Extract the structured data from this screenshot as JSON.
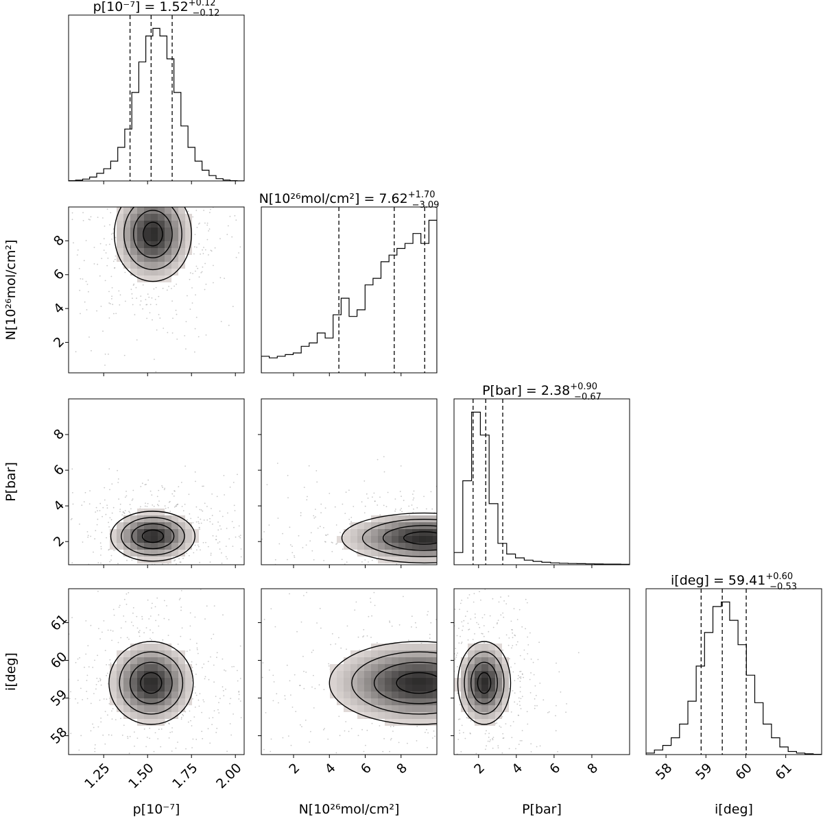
{
  "chart_data": {
    "type": "corner",
    "parameters": [
      {
        "key": "p",
        "symbol": "p",
        "unit": "[10⁻⁷]",
        "label_text": "p[10⁻⁷]",
        "range": [
          1.05,
          2.05
        ],
        "ticks": [
          1.25,
          1.5,
          1.75,
          2.0
        ],
        "tick_labels": [
          "1.25",
          "1.50",
          "1.75",
          "2.00"
        ],
        "title": {
          "prefix": "p[10⁻⁷] = 1.52",
          "plus": "+0.12",
          "minus": "−0.12"
        },
        "quantiles": [
          1.4,
          1.52,
          1.64
        ],
        "hist": [
          0.2,
          0.5,
          1.2,
          2.5,
          5,
          8,
          13,
          22,
          34,
          58,
          78,
          95,
          100,
          95,
          80,
          58,
          36,
          22,
          13,
          7,
          3.5,
          1.5,
          0.6,
          0.2,
          0.1
        ]
      },
      {
        "key": "N",
        "symbol": "N",
        "unit": "[10²⁶mol/cm²]",
        "label_text": "N[10²⁶mol/cm²]",
        "range": [
          0.2,
          10
        ],
        "ticks": [
          2,
          4,
          6,
          8
        ],
        "tick_labels": [
          "2",
          "4",
          "6",
          "8"
        ],
        "title": {
          "prefix": "N[10²⁶mol/cm²] = 7.62",
          "plus": "+1.70",
          "minus": "−3.09"
        },
        "quantiles": [
          4.53,
          7.62,
          9.32
        ],
        "hist": [
          10,
          9,
          10,
          11,
          12,
          16,
          18,
          24,
          21,
          35,
          45,
          34,
          38,
          53,
          57,
          67,
          71,
          75,
          78,
          84,
          78,
          92
        ]
      },
      {
        "key": "P",
        "symbol": "P",
        "unit": "[bar]",
        "label_text": "P[bar]",
        "range": [
          0.7,
          10
        ],
        "ticks": [
          2,
          4,
          6,
          8
        ],
        "tick_labels": [
          "2",
          "4",
          "6",
          "8"
        ],
        "title": {
          "prefix": "P[bar] = 2.38",
          "plus": "+0.90",
          "minus": "−0.67"
        },
        "quantiles": [
          1.71,
          2.38,
          3.28
        ],
        "hist": [
          8,
          55,
          100,
          85,
          40,
          14,
          7,
          4.5,
          3,
          2.2,
          1.6,
          1.2,
          1,
          0.8,
          0.7,
          0.6,
          0.5,
          0.4,
          0.4,
          0.3
        ]
      },
      {
        "key": "i",
        "symbol": "i",
        "unit": "[deg]",
        "label_text": "i[deg]",
        "range": [
          57.5,
          61.9
        ],
        "ticks": [
          58,
          59,
          60,
          61
        ],
        "tick_labels": [
          "58",
          "59",
          "60",
          "61"
        ],
        "title": {
          "prefix": "i[deg] = 59.41",
          "plus": "+0.60",
          "minus": "−0.53"
        },
        "quantiles": [
          58.88,
          59.41,
          60.01
        ],
        "hist": [
          1,
          3,
          6,
          11,
          20,
          35,
          58,
          80,
          97,
          100,
          88,
          72,
          52,
          34,
          20,
          11,
          5,
          2,
          1,
          0.5,
          0.2
        ]
      }
    ],
    "pair_peaks": [
      {
        "row": "N",
        "col": "p",
        "center": [
          1.53,
          8.4
        ],
        "spread": [
          0.11,
          1.4
        ]
      },
      {
        "row": "P",
        "col": "p",
        "center": [
          1.53,
          2.3
        ],
        "spread": [
          0.12,
          0.7
        ]
      },
      {
        "row": "P",
        "col": "N",
        "center": [
          9.3,
          2.2
        ],
        "spread": [
          2.3,
          0.7
        ]
      },
      {
        "row": "i",
        "col": "p",
        "center": [
          1.52,
          59.4
        ],
        "spread": [
          0.12,
          0.55
        ]
      },
      {
        "row": "i",
        "col": "N",
        "center": [
          9.0,
          59.4
        ],
        "spread": [
          2.5,
          0.55
        ]
      },
      {
        "row": "i",
        "col": "P",
        "center": [
          2.3,
          59.4
        ],
        "spread": [
          0.7,
          0.55
        ]
      }
    ]
  }
}
